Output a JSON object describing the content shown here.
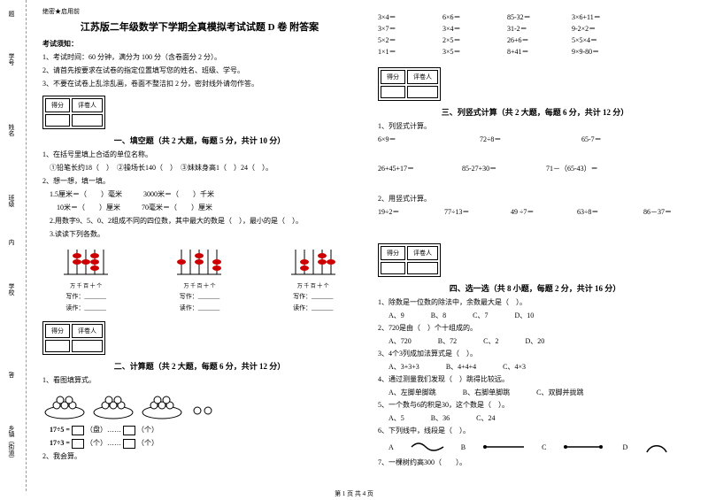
{
  "header_confidential": "绝密★启用前",
  "nohao_label": "题",
  "xuehao_label": "学号",
  "xingming_label": "姓名",
  "banji_label": "班级",
  "xuexiao_label": "学校",
  "xiangzhen_label": "乡镇（街道）",
  "nei_label": "内",
  "da_label": "答",
  "title": "江苏版二年级数学下学期全真模拟考试试题 D 卷 附答案",
  "notice_header": "考试须知：",
  "notice1": "1、考试时间：60 分钟，满分为 100 分（含卷面分 2 分）。",
  "notice2": "2、请首先按要求在试卷的指定位置填写您的姓名、班级、学号。",
  "notice3": "3、不要在试卷上乱涂乱画，卷面不整洁扣 2 分，密封线外请勿作答。",
  "score_header1": "得分",
  "score_header2": "评卷人",
  "section1_title": "一、填空题（共 2 大题，每题 5 分，共计 10 分）",
  "q1_1": "1、在括号里填上合适的单位名称。",
  "q1_1_items": "　①铅笔长约18（　）　②操场长140（　）　③妹妹身高1（　）24（　）。",
  "q1_2": "2、想一想，填一填。",
  "q1_2a": "　1.5厘米＝（　　）毫米　　　3000米＝（　　）千米",
  "q1_2b": "　　10米＝（　　）厘米　　　70毫米＝（　　）厘米",
  "q1_2c": "　2.用数字9、5、0、2组成不同的四位数，其中最大的数是（　），最小的是（　）。",
  "q1_2d": "　3.读读下列各数。",
  "abacus_label": "万 千 百 十 个",
  "write_label": "写作：_______",
  "read_label": "读作：_______",
  "section2_title": "二、计算题（共 2 大题，每题 6 分，共计 12 分）",
  "q2_1": "1、看图填算式。",
  "q2_1_eq1_a": "17÷5 =",
  "q2_1_eq1_b": "（盘）……",
  "q2_1_eq1_c": "（个）",
  "q2_1_eq2_a": "17÷3 =",
  "q2_1_eq2_b": "（个）……",
  "q2_1_eq2_c": "（个）",
  "q2_2": "2、我会算。",
  "calc_rows": [
    [
      "3×4＝",
      "6×6＝",
      "85-32＝",
      "3×6+11＝"
    ],
    [
      "3×7＝",
      "3×4＝",
      "31-2＝",
      "9-2×2＝"
    ],
    [
      "5×2＝",
      "2×5＝",
      "26+6＝",
      "5×5×4＝"
    ],
    [
      "1×1＝",
      "3×5＝",
      "8+41＝",
      "9×9-80＝"
    ]
  ],
  "section3_title": "三、列竖式计算（共 2 大题，每题 6 分，共计 12 分）",
  "q3_1": "1、列竖式计算。",
  "q3_1_row1": [
    "6×9＝",
    "72÷8＝",
    "65-7＝"
  ],
  "q3_1_row2": [
    "26+45+17＝",
    "85-27+30＝",
    "71－（65-43）＝"
  ],
  "q3_2": "2、用竖式计算。",
  "q3_2_row": [
    "19÷2＝",
    "77÷13＝",
    "49 ÷7＝",
    "63÷8＝",
    "86－37＝"
  ],
  "section4_title": "四、选一选（共 8 小题，每题 2 分，共计 16 分）",
  "q4_1": "1、除数是一位数的除法中，余数最大是（　）。",
  "q4_1_opts": [
    "A、9",
    "B、8",
    "C、7",
    "D、10"
  ],
  "q4_2": "2、720是由（　）个十组成的。",
  "q4_2_opts": [
    "A、720",
    "B、72",
    "C、2",
    "D、20"
  ],
  "q4_3": "3、4个3列成加法算式是（　）。",
  "q4_3_opts": [
    "A、3+3+3",
    "B、4+4+4",
    "C、4×3"
  ],
  "q4_4": "4、通过测量我们发现（　）跳得比较远。",
  "q4_4_opts": [
    "A、左脚单脚跳",
    "B、右脚单脚跳",
    "C、双脚并拢跳"
  ],
  "q4_5": "5、一个数与6的积是30，这个数是（　）。",
  "q4_5_opts": [
    "A、5",
    "B、36",
    "C、24"
  ],
  "q4_6": "6、下列线中，线段是（　）。",
  "q4_7": "7、一棵树约高300（　　）。",
  "shape_labels": [
    "A",
    "B",
    "C",
    "D"
  ],
  "footer": "第 1 页 共 4 页"
}
